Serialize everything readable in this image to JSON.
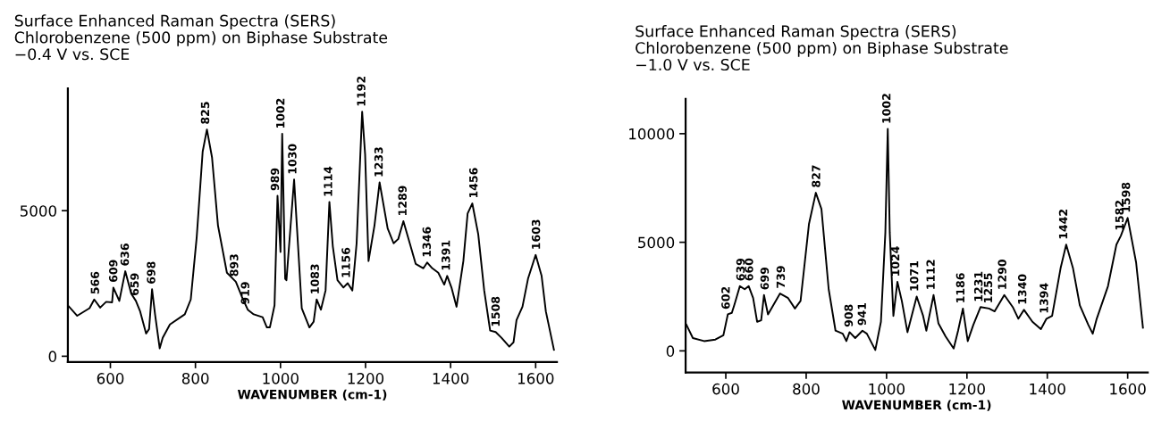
{
  "chart_data": [
    {
      "type": "line",
      "title": "Surface Enhanced Raman Spectra (SERS)",
      "subtitle": "Chlorobenzene (500 ppm) on Biphase Substrate\n−0.4 V vs. SCE",
      "xlabel": "WAVENUMBER (cm-1)",
      "color": "#000000",
      "x": [
        500,
        522,
        551,
        562,
        576,
        590,
        604,
        607,
        621,
        635,
        649,
        660,
        670,
        684,
        691,
        698,
        705,
        716,
        723,
        740,
        775,
        789,
        803,
        817,
        827,
        839,
        853,
        874,
        895,
        909,
        923,
        937,
        958,
        968,
        975,
        986,
        993,
        1000,
        1004,
        1011,
        1014,
        1032,
        1050,
        1068,
        1078,
        1085,
        1095,
        1106,
        1115,
        1123,
        1134,
        1148,
        1158,
        1169,
        1179,
        1192,
        1199,
        1207,
        1221,
        1233,
        1252,
        1266,
        1277,
        1289,
        1304,
        1318,
        1336,
        1345,
        1357,
        1371,
        1385,
        1392,
        1402,
        1414,
        1430,
        1440,
        1451,
        1465,
        1479,
        1493,
        1506,
        1520,
        1538,
        1548,
        1555,
        1569,
        1582,
        1600,
        1614,
        1624,
        1643
      ],
      "values": [
        1750,
        1390,
        1650,
        1950,
        1670,
        1870,
        1850,
        2360,
        1900,
        2920,
        2150,
        1900,
        1540,
        780,
        935,
        2300,
        1440,
        270,
        630,
        1090,
        1440,
        1950,
        4090,
        7030,
        7790,
        6830,
        4490,
        2870,
        2560,
        2050,
        1600,
        1440,
        1340,
        990,
        990,
        1750,
        5510,
        3580,
        7640,
        2660,
        2610,
        6070,
        1650,
        990,
        1190,
        1950,
        1600,
        2260,
        5300,
        3780,
        2610,
        2360,
        2510,
        2260,
        3880,
        8400,
        6930,
        3270,
        4490,
        5970,
        4390,
        3880,
        4030,
        4640,
        3880,
        3170,
        3020,
        3220,
        3020,
        2870,
        2460,
        2760,
        2360,
        1700,
        3270,
        4900,
        5250,
        4190,
        2260,
        880,
        830,
        630,
        330,
        480,
        1240,
        1700,
        2660,
        3480,
        2760,
        1540,
        220
      ],
      "xlim": [
        500,
        1650
      ],
      "xticks": [
        600,
        800,
        1000,
        1200,
        1400,
        1600
      ],
      "ylim": [
        -200,
        9200
      ],
      "yticks": [
        0,
        5000
      ],
      "annotations": [
        {
          "text": "566",
          "x": 566,
          "y": 1950
        },
        {
          "text": "609",
          "x": 609,
          "y": 2360
        },
        {
          "text": "636",
          "x": 636,
          "y": 2920
        },
        {
          "text": "659",
          "x": 659,
          "y": 1900
        },
        {
          "text": "698",
          "x": 698,
          "y": 2300
        },
        {
          "text": "825",
          "x": 825,
          "y": 7790
        },
        {
          "text": "893",
          "x": 893,
          "y": 2560
        },
        {
          "text": "919",
          "x": 919,
          "y": 1600
        },
        {
          "text": "989",
          "x": 989,
          "y": 5510
        },
        {
          "text": "1002",
          "x": 1002,
          "y": 7640
        },
        {
          "text": "1030",
          "x": 1030,
          "y": 6070
        },
        {
          "text": "1083",
          "x": 1083,
          "y": 1950
        },
        {
          "text": "1114",
          "x": 1114,
          "y": 5300
        },
        {
          "text": "1156",
          "x": 1156,
          "y": 2510
        },
        {
          "text": "1192",
          "x": 1192,
          "y": 8400
        },
        {
          "text": "1233",
          "x": 1233,
          "y": 5970
        },
        {
          "text": "1289",
          "x": 1289,
          "y": 4640
        },
        {
          "text": "1346",
          "x": 1346,
          "y": 3220
        },
        {
          "text": "1391",
          "x": 1391,
          "y": 2760
        },
        {
          "text": "1456",
          "x": 1456,
          "y": 5250
        },
        {
          "text": "1508",
          "x": 1508,
          "y": 830
        },
        {
          "text": "1603",
          "x": 1603,
          "y": 3480
        }
      ]
    },
    {
      "type": "line",
      "title": "Surface Enhanced Raman Spectra (SERS)",
      "subtitle": "Chlorobenzene (500 ppm) on Biphase Substrate\n−1.0 V vs. SCE",
      "xlabel": "WAVENUMBER (cm-1)",
      "color": "#000000",
      "x": [
        502,
        518,
        546,
        574,
        594,
        605,
        615,
        622,
        635,
        647,
        657,
        668,
        678,
        688,
        695,
        705,
        720,
        735,
        755,
        772,
        786,
        807,
        824,
        838,
        856,
        873,
        891,
        900,
        908,
        922,
        940,
        951,
        972,
        986,
        997,
        1003,
        1008,
        1017,
        1027,
        1038,
        1052,
        1075,
        1091,
        1099,
        1117,
        1129,
        1147,
        1167,
        1178,
        1190,
        1202,
        1216,
        1234,
        1255,
        1269,
        1293,
        1314,
        1328,
        1342,
        1363,
        1384,
        1398,
        1412,
        1433,
        1447,
        1464,
        1481,
        1502,
        1513,
        1523,
        1551,
        1572,
        1583,
        1600,
        1621,
        1638
      ],
      "values": [
        1200,
        590,
        450,
        520,
        720,
        1680,
        1750,
        2160,
        2980,
        2840,
        2980,
        2430,
        1340,
        1410,
        2570,
        1680,
        2160,
        2640,
        2430,
        1950,
        2300,
        5850,
        7280,
        6530,
        2840,
        930,
        790,
        450,
        860,
        590,
        930,
        790,
        40,
        1340,
        5440,
        10220,
        5440,
        1610,
        3180,
        2300,
        860,
        2500,
        1610,
        930,
        2570,
        1270,
        660,
        110,
        930,
        1950,
        450,
        1200,
        2020,
        1950,
        1820,
        2570,
        2020,
        1480,
        1890,
        1340,
        1000,
        1480,
        1610,
        3800,
        4890,
        3800,
        2090,
        1200,
        790,
        1480,
        2980,
        4890,
        5300,
        6120,
        4070,
        1070
      ],
      "xlim": [
        500,
        1650
      ],
      "xticks": [
        600,
        800,
        1000,
        1200,
        1400,
        1600
      ],
      "ylim": [
        -1000,
        11600
      ],
      "yticks": [
        0,
        5000,
        10000
      ],
      "annotations": [
        {
          "text": "602",
          "x": 602,
          "y": 1680
        },
        {
          "text": "639",
          "x": 639,
          "y": 2980
        },
        {
          "text": "660",
          "x": 660,
          "y": 2980
        },
        {
          "text": "699",
          "x": 699,
          "y": 2570
        },
        {
          "text": "739",
          "x": 739,
          "y": 2640
        },
        {
          "text": "827",
          "x": 827,
          "y": 7280
        },
        {
          "text": "908",
          "x": 908,
          "y": 860
        },
        {
          "text": "941",
          "x": 941,
          "y": 930
        },
        {
          "text": "1002",
          "x": 1002,
          "y": 10220
        },
        {
          "text": "1024",
          "x": 1024,
          "y": 3180
        },
        {
          "text": "1071",
          "x": 1071,
          "y": 2500
        },
        {
          "text": "1112",
          "x": 1112,
          "y": 2570
        },
        {
          "text": "1186",
          "x": 1186,
          "y": 1950
        },
        {
          "text": "1231",
          "x": 1231,
          "y": 2020
        },
        {
          "text": "1255",
          "x": 1255,
          "y": 1950
        },
        {
          "text": "1290",
          "x": 1290,
          "y": 2570
        },
        {
          "text": "1340",
          "x": 1340,
          "y": 1890
        },
        {
          "text": "1394",
          "x": 1394,
          "y": 1480
        },
        {
          "text": "1442",
          "x": 1442,
          "y": 4890
        },
        {
          "text": "1582",
          "x": 1582,
          "y": 5300
        },
        {
          "text": "1598",
          "x": 1598,
          "y": 6120
        }
      ]
    }
  ]
}
